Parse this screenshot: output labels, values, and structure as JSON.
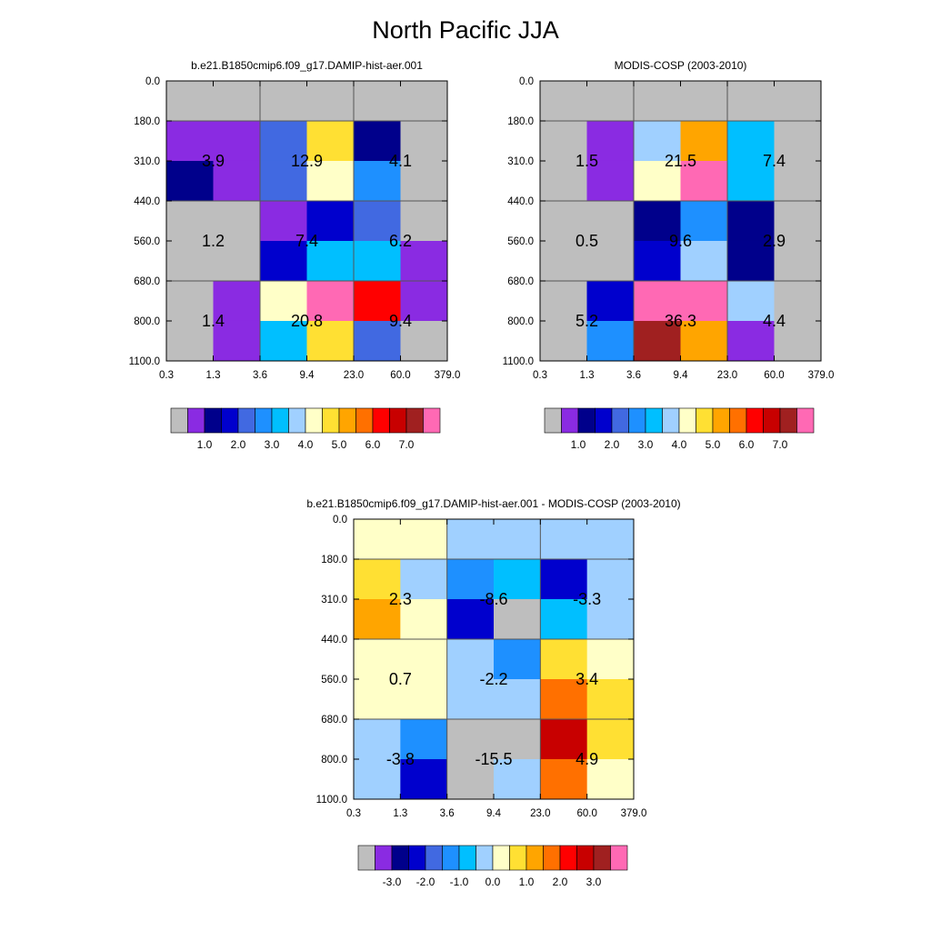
{
  "title": "North Pacific JJA",
  "colors": {
    "abs": [
      "#bebebe",
      "#8a2be2",
      "#00008b",
      "#0000cd",
      "#4169e1",
      "#1e90ff",
      "#00bfff",
      "#a0d0ff",
      "#ffffc8",
      "#ffe033",
      "#ffa500",
      "#ff7000",
      "#ff0000",
      "#c80000",
      "#a02020",
      "#ff69b4"
    ],
    "diff": [
      "#bebebe",
      "#8a2be2",
      "#00008b",
      "#0000cd",
      "#4169e1",
      "#1e90ff",
      "#00bfff",
      "#a0d0ff",
      "#ffffc8",
      "#ffe033",
      "#ffa500",
      "#ff7000",
      "#ff0000",
      "#c80000",
      "#a02020",
      "#ff69b4"
    ]
  },
  "chart_data": [
    {
      "type": "heatmap",
      "title": "b.e21.B1850cmip6.f09_g17.DAMIP-hist-aer.001",
      "x_ticks": [
        "0.3",
        "1.3",
        "3.6",
        "9.4",
        "23.0",
        "60.0",
        "379.0"
      ],
      "y_ticks": [
        "0.0",
        "180.0",
        "310.0",
        "440.0",
        "560.0",
        "680.0",
        "800.0",
        "1100.0"
      ],
      "cells": [
        [
          0,
          0,
          0,
          0,
          0,
          0
        ],
        [
          1,
          1,
          4,
          9,
          2,
          0
        ],
        [
          2,
          1,
          4,
          8,
          5,
          0
        ],
        [
          0,
          0,
          1,
          3,
          4,
          0
        ],
        [
          0,
          0,
          3,
          6,
          6,
          1
        ],
        [
          0,
          1,
          8,
          15,
          12,
          1
        ],
        [
          0,
          1,
          6,
          9,
          4,
          0
        ]
      ],
      "block_values": [
        [
          "3.9",
          "12.9",
          "4.1"
        ],
        [
          "1.2",
          "7.4",
          "6.2"
        ],
        [
          "1.4",
          "20.8",
          "9.4"
        ]
      ],
      "colorbar_labels": [
        "1.0",
        "2.0",
        "3.0",
        "4.0",
        "5.0",
        "6.0",
        "7.0"
      ]
    },
    {
      "type": "heatmap",
      "title": "MODIS-COSP (2003-2010)",
      "x_ticks": [
        "0.3",
        "1.3",
        "3.6",
        "9.4",
        "23.0",
        "60.0",
        "379.0"
      ],
      "y_ticks": [
        "0.0",
        "180.0",
        "310.0",
        "440.0",
        "560.0",
        "680.0",
        "800.0",
        "1100.0"
      ],
      "cells": [
        [
          0,
          0,
          0,
          0,
          0,
          0
        ],
        [
          0,
          1,
          7,
          10,
          6,
          0
        ],
        [
          0,
          1,
          8,
          15,
          6,
          0
        ],
        [
          0,
          0,
          2,
          5,
          2,
          0
        ],
        [
          0,
          0,
          3,
          7,
          2,
          0
        ],
        [
          0,
          3,
          15,
          15,
          7,
          0
        ],
        [
          0,
          5,
          14,
          10,
          1,
          0
        ]
      ],
      "block_values": [
        [
          "1.5",
          "21.5",
          "7.4"
        ],
        [
          "0.5",
          "9.6",
          "2.9"
        ],
        [
          "5.2",
          "36.3",
          "4.4"
        ]
      ],
      "colorbar_labels": [
        "1.0",
        "2.0",
        "3.0",
        "4.0",
        "5.0",
        "6.0",
        "7.0"
      ]
    },
    {
      "type": "heatmap",
      "title": "b.e21.B1850cmip6.f09_g17.DAMIP-hist-aer.001 - MODIS-COSP (2003-2010)",
      "x_ticks": [
        "0.3",
        "1.3",
        "3.6",
        "9.4",
        "23.0",
        "60.0",
        "379.0"
      ],
      "y_ticks": [
        "0.0",
        "180.0",
        "310.0",
        "440.0",
        "560.0",
        "680.0",
        "800.0",
        "1100.0"
      ],
      "cells": [
        [
          8,
          8,
          7,
          7,
          7,
          7
        ],
        [
          9,
          7,
          5,
          6,
          3,
          7
        ],
        [
          10,
          8,
          3,
          0,
          6,
          7
        ],
        [
          8,
          8,
          7,
          5,
          9,
          8
        ],
        [
          8,
          8,
          7,
          7,
          11,
          9
        ],
        [
          7,
          5,
          0,
          0,
          13,
          9
        ],
        [
          7,
          3,
          0,
          7,
          11,
          8
        ]
      ],
      "block_values": [
        [
          "2.3",
          "-8.6",
          "-3.3"
        ],
        [
          "0.7",
          "-2.2",
          "3.4"
        ],
        [
          "-3.8",
          "-15.5",
          "4.9"
        ]
      ],
      "colorbar_labels": [
        "-3.0",
        "-2.0",
        "-1.0",
        "0.0",
        "1.0",
        "2.0",
        "3.0"
      ]
    }
  ]
}
